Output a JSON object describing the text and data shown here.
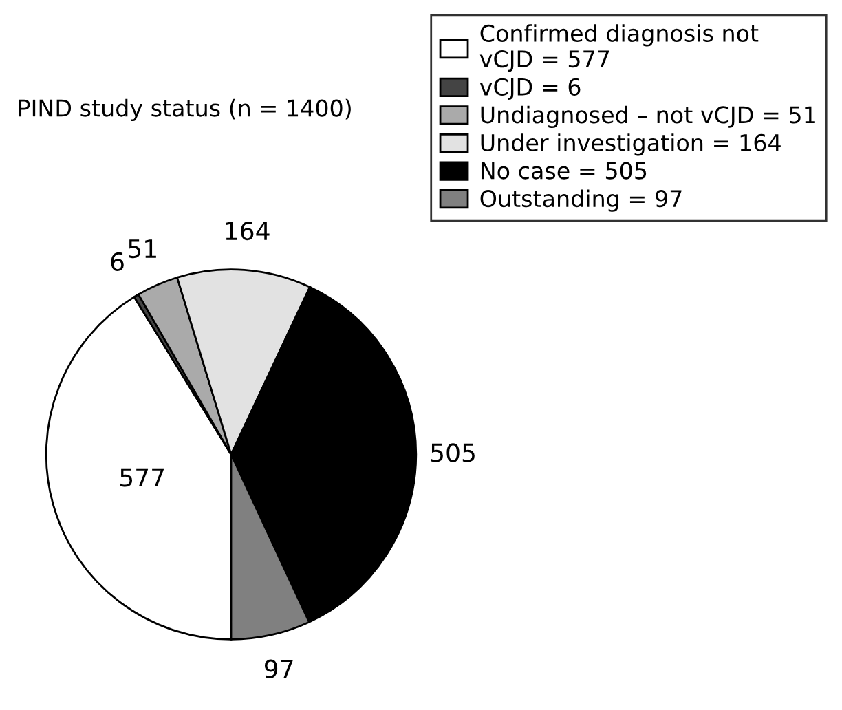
{
  "chart_data": {
    "type": "pie",
    "title": "PIND study status (n = 1400)",
    "categories": [
      "Confirmed diagnosis not\nvCJD = 577",
      "vCJD = 6",
      "Undiagnosed – not vCJD = 51",
      "Under investigation = 164",
      "No case = 505",
      "Outstanding = 97"
    ],
    "values": [
      577,
      6,
      51,
      164,
      505,
      97
    ],
    "colors": [
      "#ffffff",
      "#444444",
      "#aaaaaa",
      "#e2e2e2",
      "#000000",
      "#808080"
    ],
    "data_labels": true,
    "legend": "top right"
  }
}
